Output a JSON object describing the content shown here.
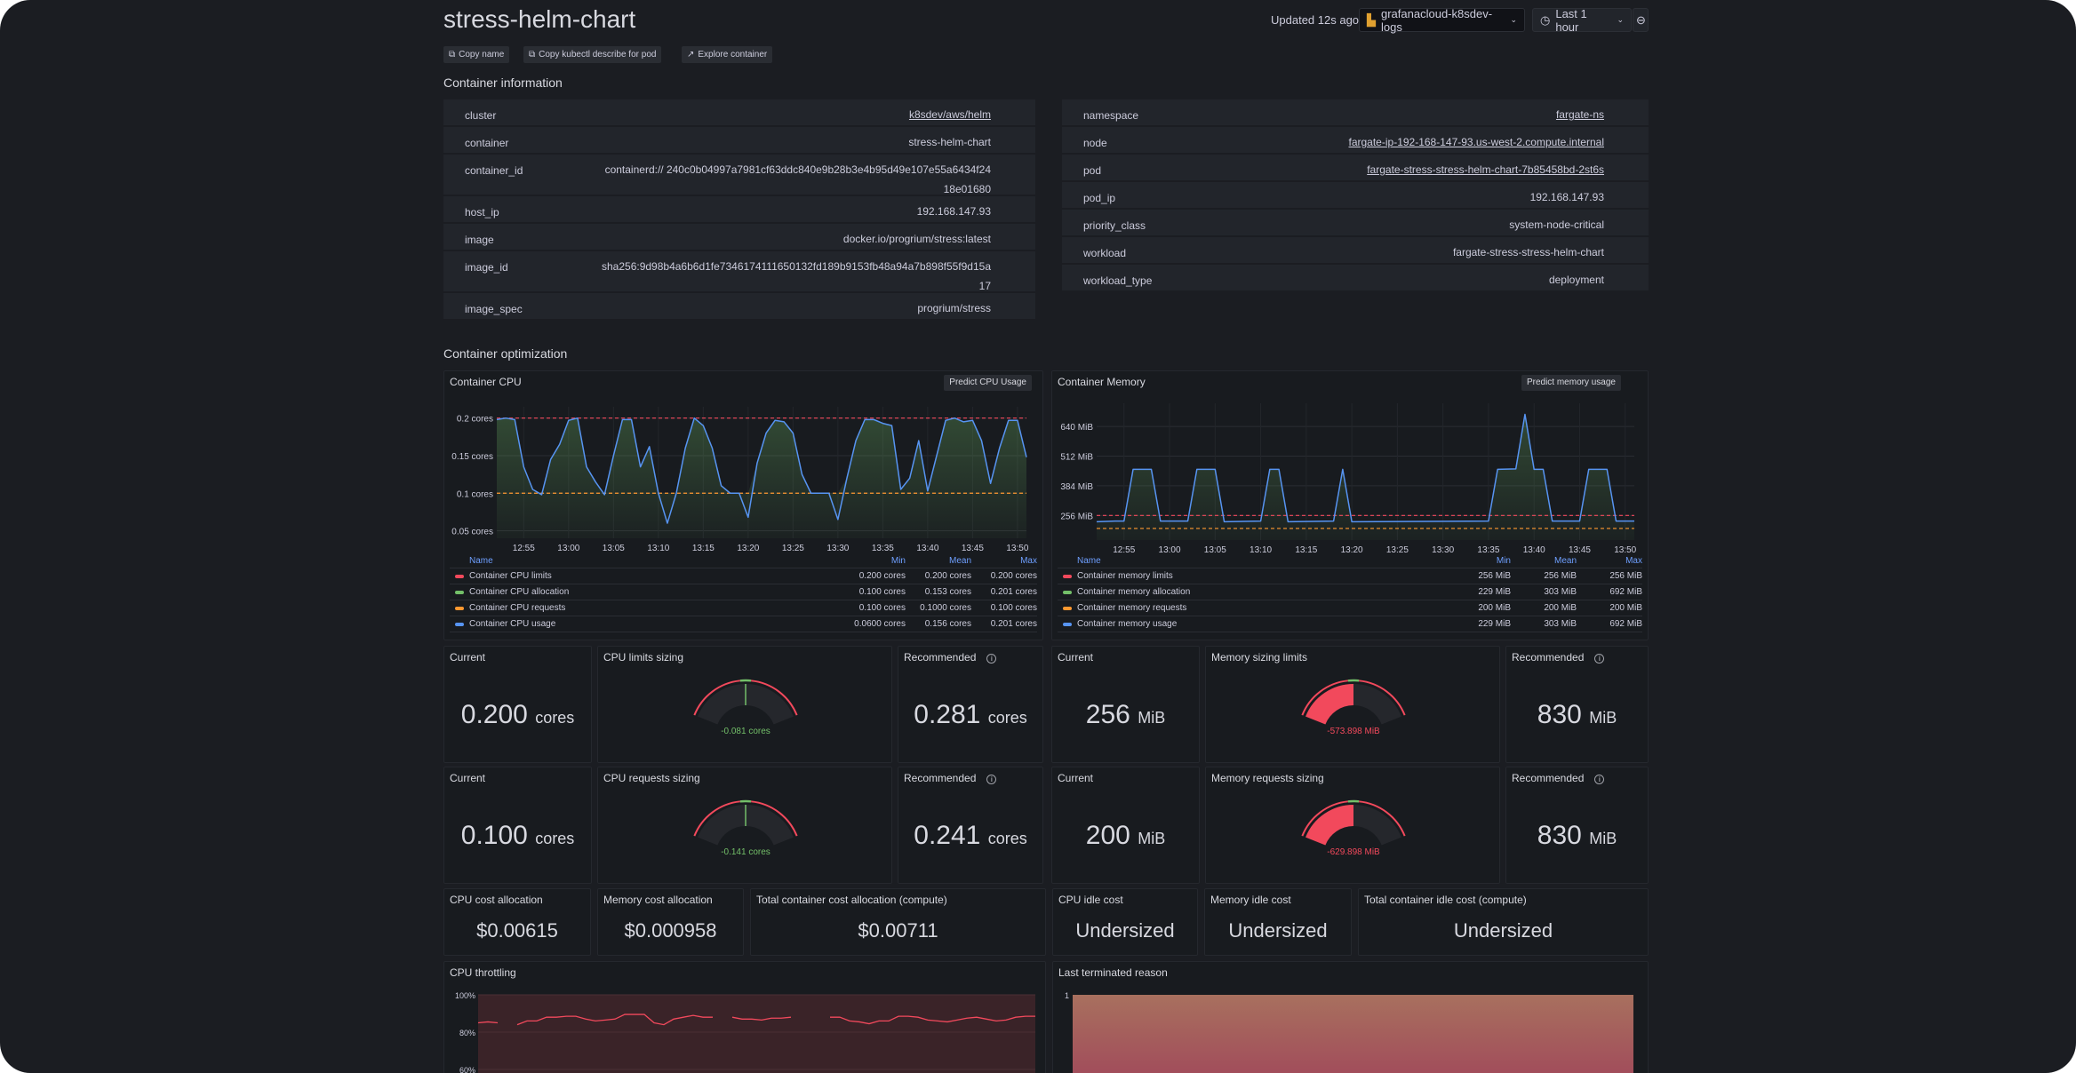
{
  "header": {
    "title": "stress-helm-chart",
    "updated": "Updated 12s ago",
    "datasource": "grafanacloud-k8sdev-logs",
    "time_range": "Last 1 hour"
  },
  "actions": [
    {
      "label": "Copy name",
      "icon": "copy-icon"
    },
    {
      "label": "Copy kubectl describe for pod",
      "icon": "copy-icon"
    },
    {
      "label": "Explore container",
      "icon": "external-link-icon"
    }
  ],
  "info": {
    "title": "Container information",
    "left": [
      {
        "k": "cluster",
        "v": "k8sdev/aws/helm",
        "link": true
      },
      {
        "k": "container",
        "v": "stress-helm-chart"
      },
      {
        "k": "container_id",
        "v": "containerd:// 240c0b04997a7981cf63ddc840e9b28b3e4b95d49e107e55a6434f2418e01680"
      },
      {
        "k": "host_ip",
        "v": "192.168.147.93"
      },
      {
        "k": "image",
        "v": "docker.io/progrium/stress:latest"
      },
      {
        "k": "image_id",
        "v": "sha256:9d98b4a6b6d1fe7346174111650132fd189b9153fb48a94a7b898f55f9d15a17"
      },
      {
        "k": "image_spec",
        "v": "progrium/stress"
      }
    ],
    "right": [
      {
        "k": "namespace",
        "v": "fargate-ns",
        "link": true
      },
      {
        "k": "node",
        "v": "fargate-ip-192-168-147-93.us-west-2.compute.internal",
        "link": true
      },
      {
        "k": "pod",
        "v": "fargate-stress-stress-helm-chart-7b85458bd-2st6s",
        "link": true
      },
      {
        "k": "pod_ip",
        "v": "192.168.147.93"
      },
      {
        "k": "priority_class",
        "v": "system-node-critical"
      },
      {
        "k": "workload",
        "v": "fargate-stress-stress-helm-chart"
      },
      {
        "k": "workload_type",
        "v": "deployment"
      }
    ]
  },
  "optimization": {
    "title": "Container optimization"
  },
  "legend_headers": {
    "name": "Name",
    "min": "Min",
    "mean": "Mean",
    "max": "Max"
  },
  "chart_data": [
    {
      "type": "area",
      "title": "Container CPU",
      "button": "Predict CPU Usage",
      "ylim": [
        0.04,
        0.215
      ],
      "xlim": [
        "12:52",
        "13:51"
      ],
      "yticks": [
        {
          "v": 0.2,
          "label": "0.2 cores"
        },
        {
          "v": 0.15,
          "label": "0.15 cores"
        },
        {
          "v": 0.1,
          "label": "0.1 cores"
        },
        {
          "v": 0.05,
          "label": "0.05 cores"
        }
      ],
      "xticks": [
        "12:55",
        "13:00",
        "13:05",
        "13:10",
        "13:15",
        "13:20",
        "13:25",
        "13:30",
        "13:35",
        "13:40",
        "13:45",
        "13:50"
      ],
      "series": [
        {
          "name": "Container CPU limits",
          "color": "#f2495c",
          "dashed": true,
          "constant": 0.2,
          "min": "0.200 cores",
          "mean": "0.200 cores",
          "max": "0.200 cores"
        },
        {
          "name": "Container CPU allocation",
          "color": "#73bf69",
          "fill": true,
          "min": "0.100 cores",
          "mean": "0.153 cores",
          "max": "0.201 cores"
        },
        {
          "name": "Container CPU requests",
          "color": "#ff9830",
          "dashed": true,
          "constant": 0.1,
          "min": "0.100 cores",
          "mean": "0.1000 cores",
          "max": "0.100 cores"
        },
        {
          "name": "Container CPU usage",
          "color": "#5794f2",
          "min": "0.0600 cores",
          "mean": "0.156 cores",
          "max": "0.201 cores",
          "points": [
            [
              "12:52",
              0.198
            ],
            [
              "12:53",
              0.2
            ],
            [
              "12:54",
              0.198
            ],
            [
              "12:55",
              0.135
            ],
            [
              "12:56",
              0.105
            ],
            [
              "12:57",
              0.098
            ],
            [
              "12:58",
              0.145
            ],
            [
              "12:59",
              0.165
            ],
            [
              "13:00",
              0.197
            ],
            [
              "13:01",
              0.2
            ],
            [
              "13:02",
              0.135
            ],
            [
              "13:03",
              0.115
            ],
            [
              "13:04",
              0.098
            ],
            [
              "13:05",
              0.15
            ],
            [
              "13:06",
              0.198
            ],
            [
              "13:07",
              0.198
            ],
            [
              "13:08",
              0.135
            ],
            [
              "13:09",
              0.162
            ],
            [
              "13:10",
              0.1
            ],
            [
              "13:11",
              0.06
            ],
            [
              "13:12",
              0.1
            ],
            [
              "13:13",
              0.16
            ],
            [
              "13:14",
              0.2
            ],
            [
              "13:15",
              0.19
            ],
            [
              "13:16",
              0.16
            ],
            [
              "13:17",
              0.11
            ],
            [
              "13:18",
              0.1
            ],
            [
              "13:19",
              0.1
            ],
            [
              "13:20",
              0.068
            ],
            [
              "13:21",
              0.14
            ],
            [
              "13:22",
              0.18
            ],
            [
              "13:23",
              0.197
            ],
            [
              "13:24",
              0.195
            ],
            [
              "13:25",
              0.18
            ],
            [
              "13:26",
              0.125
            ],
            [
              "13:27",
              0.1
            ],
            [
              "13:28",
              0.1
            ],
            [
              "13:29",
              0.1
            ],
            [
              "13:30",
              0.065
            ],
            [
              "13:31",
              0.12
            ],
            [
              "13:32",
              0.17
            ],
            [
              "13:33",
              0.198
            ],
            [
              "13:34",
              0.198
            ],
            [
              "13:35",
              0.193
            ],
            [
              "13:36",
              0.19
            ],
            [
              "13:37",
              0.105
            ],
            [
              "13:38",
              0.12
            ],
            [
              "13:39",
              0.17
            ],
            [
              "13:40",
              0.103
            ],
            [
              "13:41",
              0.15
            ],
            [
              "13:42",
              0.197
            ],
            [
              "13:43",
              0.2
            ],
            [
              "13:44",
              0.195
            ],
            [
              "13:45",
              0.197
            ],
            [
              "13:46",
              0.17
            ],
            [
              "13:47",
              0.113
            ],
            [
              "13:48",
              0.16
            ],
            [
              "13:49",
              0.197
            ],
            [
              "13:50",
              0.197
            ],
            [
              "13:51",
              0.148
            ]
          ]
        }
      ]
    },
    {
      "type": "area",
      "title": "Container Memory",
      "button": "Predict memory usage",
      "ylim": [
        150,
        740
      ],
      "xlim": [
        "12:52",
        "13:51"
      ],
      "yticks": [
        {
          "v": 640,
          "label": "640 MiB"
        },
        {
          "v": 512,
          "label": "512 MiB"
        },
        {
          "v": 384,
          "label": "384 MiB"
        },
        {
          "v": 256,
          "label": "256 MiB"
        }
      ],
      "xticks": [
        "12:55",
        "13:00",
        "13:05",
        "13:10",
        "13:15",
        "13:20",
        "13:25",
        "13:30",
        "13:35",
        "13:40",
        "13:45",
        "13:50"
      ],
      "series": [
        {
          "name": "Container memory limits",
          "color": "#f2495c",
          "dashed": true,
          "constant": 256,
          "min": "256 MiB",
          "mean": "256 MiB",
          "max": "256 MiB"
        },
        {
          "name": "Container memory allocation",
          "color": "#73bf69",
          "fill": true,
          "min": "229 MiB",
          "mean": "303 MiB",
          "max": "692 MiB"
        },
        {
          "name": "Container memory requests",
          "color": "#ff9830",
          "dashed": true,
          "constant": 200,
          "min": "200 MiB",
          "mean": "200 MiB",
          "max": "200 MiB"
        },
        {
          "name": "Container memory usage",
          "color": "#5794f2",
          "min": "229 MiB",
          "mean": "303 MiB",
          "max": "692 MiB",
          "points": [
            [
              "12:52",
              229
            ],
            [
              "12:54",
              232
            ],
            [
              "12:55",
              232
            ],
            [
              "12:56",
              455
            ],
            [
              "12:58",
              455
            ],
            [
              "12:59",
              232
            ],
            [
              "13:02",
              232
            ],
            [
              "13:03",
              455
            ],
            [
              "13:05",
              455
            ],
            [
              "13:06",
              229
            ],
            [
              "13:10",
              232
            ],
            [
              "13:11",
              455
            ],
            [
              "13:12",
              455
            ],
            [
              "13:13",
              229
            ],
            [
              "13:18",
              232
            ],
            [
              "13:19",
              455
            ],
            [
              "13:20",
              229
            ],
            [
              "13:35",
              232
            ],
            [
              "13:36",
              455
            ],
            [
              "13:38",
              457
            ],
            [
              "13:39",
              692
            ],
            [
              "13:40",
              455
            ],
            [
              "13:41",
              455
            ],
            [
              "13:42",
              232
            ],
            [
              "13:45",
              232
            ],
            [
              "13:46",
              455
            ],
            [
              "13:48",
              455
            ],
            [
              "13:49",
              232
            ],
            [
              "13:51",
              232
            ]
          ]
        }
      ]
    },
    {
      "type": "line",
      "title": "CPU throttling",
      "ylim": [
        60,
        100
      ],
      "yticks": [
        "100%",
        "80%",
        "60%"
      ],
      "color": "#f2495c",
      "values": [
        85,
        85.5,
        85,
        null,
        84,
        86,
        86,
        88,
        88,
        88.5,
        88.5,
        87,
        86,
        86.5,
        87,
        89.5,
        89.5,
        89.5,
        85,
        84,
        87,
        88,
        89,
        88,
        88,
        null,
        88,
        87,
        87,
        86.5,
        87.5,
        87.5,
        88,
        null,
        null,
        null,
        88,
        88,
        86,
        85.5,
        84.5,
        86,
        86,
        88.5,
        88.5,
        88,
        86.5,
        86,
        85.5,
        86.5,
        87.5,
        88,
        87,
        86,
        86.5,
        88,
        88.5,
        88.5
      ]
    },
    {
      "type": "area",
      "title": "Last terminated reason",
      "ylim": [
        0,
        1
      ],
      "yticks": [
        "1"
      ],
      "values": [
        1,
        1
      ]
    }
  ],
  "sizing": {
    "cpu_limits": {
      "current_label": "Current",
      "current": "0.200",
      "unit": "cores",
      "gauge_title": "CPU limits sizing",
      "gauge_value": "-0.081 cores",
      "gauge_fill": 0.5,
      "gauge_color": "#73bf69",
      "rec_label": "Recommended",
      "rec": "0.281",
      "rec_unit": "cores"
    },
    "cpu_requests": {
      "current_label": "Current",
      "current": "0.100",
      "unit": "cores",
      "gauge_title": "CPU requests sizing",
      "gauge_value": "-0.141 cores",
      "gauge_fill": 0.5,
      "gauge_color": "#73bf69",
      "rec_label": "Recommended",
      "rec": "0.241",
      "rec_unit": "cores"
    },
    "mem_limits": {
      "current_label": "Current",
      "current": "256",
      "unit": "MiB",
      "gauge_title": "Memory sizing limits",
      "gauge_value": "-573.898 MiB",
      "gauge_fill": 0.5,
      "gauge_color": "#f2495c",
      "rec_label": "Recommended",
      "rec": "830",
      "rec_unit": "MiB"
    },
    "mem_requests": {
      "current_label": "Current",
      "current": "200",
      "unit": "MiB",
      "gauge_title": "Memory requests sizing",
      "gauge_value": "-629.898 MiB",
      "gauge_fill": 0.5,
      "gauge_color": "#f2495c",
      "rec_label": "Recommended",
      "rec": "830",
      "rec_unit": "MiB"
    }
  },
  "costs": [
    {
      "label": "CPU cost allocation",
      "value": "$0.00615"
    },
    {
      "label": "Memory cost allocation",
      "value": "$0.000958"
    },
    {
      "label": "Total container cost allocation (compute)",
      "value": "$0.00711"
    },
    {
      "label": "CPU idle cost",
      "value": "Undersized"
    },
    {
      "label": "Memory idle cost",
      "value": "Undersized"
    },
    {
      "label": "Total container idle cost (compute)",
      "value": "Undersized"
    }
  ]
}
